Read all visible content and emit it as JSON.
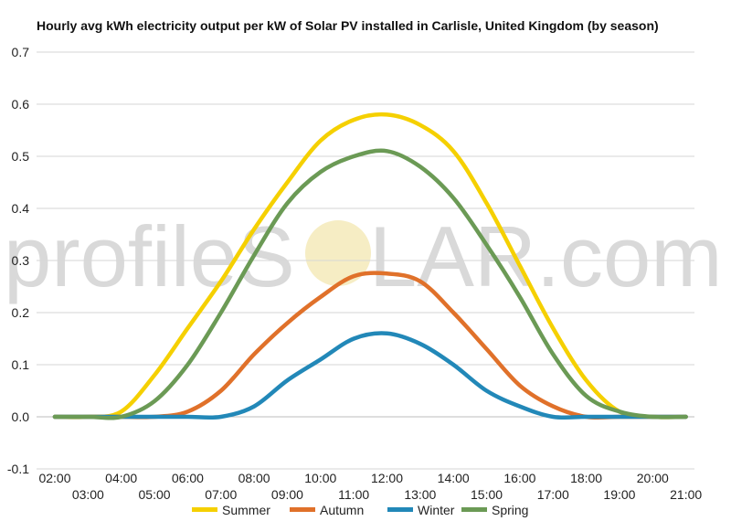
{
  "watermark": {
    "left": "profileS",
    "right": "LAR.com"
  },
  "chart_data": {
    "type": "line",
    "title": "Hourly avg kWh electricity output per kW of Solar PV installed in Carlisle, United Kingdom (by season)",
    "xlabel": "",
    "ylabel": "",
    "ylim": [
      -0.1,
      0.7
    ],
    "yticks": [
      -0.1,
      0.0,
      0.1,
      0.2,
      0.3,
      0.4,
      0.5,
      0.6,
      0.7
    ],
    "ytick_labels": [
      "-0.1",
      "0.0",
      "0.1",
      "0.2",
      "0.3",
      "0.4",
      "0.5",
      "0.6",
      "0.7"
    ],
    "x": [
      "02:00",
      "03:00",
      "04:00",
      "05:00",
      "06:00",
      "07:00",
      "08:00",
      "09:00",
      "10:00",
      "11:00",
      "12:00",
      "13:00",
      "14:00",
      "15:00",
      "16:00",
      "17:00",
      "18:00",
      "19:00",
      "20:00",
      "21:00"
    ],
    "grid": true,
    "legend_position": "bottom",
    "series": [
      {
        "name": "Summer",
        "color": "#f5d000",
        "values": [
          0.0,
          0.0,
          0.01,
          0.08,
          0.17,
          0.26,
          0.36,
          0.45,
          0.53,
          0.57,
          0.58,
          0.56,
          0.51,
          0.41,
          0.29,
          0.17,
          0.07,
          0.01,
          0.0,
          0.0
        ]
      },
      {
        "name": "Autumn",
        "color": "#e0712a",
        "values": [
          0.0,
          0.0,
          0.0,
          0.0,
          0.01,
          0.05,
          0.12,
          0.18,
          0.23,
          0.27,
          0.275,
          0.26,
          0.2,
          0.13,
          0.06,
          0.02,
          0.0,
          0.0,
          0.0,
          0.0
        ]
      },
      {
        "name": "Winter",
        "color": "#2288b8",
        "values": [
          0.0,
          0.0,
          0.0,
          0.0,
          0.0,
          0.0,
          0.02,
          0.07,
          0.11,
          0.15,
          0.16,
          0.14,
          0.1,
          0.05,
          0.02,
          0.0,
          0.0,
          0.0,
          0.0,
          0.0
        ]
      },
      {
        "name": "Spring",
        "color": "#6b9a55",
        "values": [
          0.0,
          0.0,
          0.0,
          0.03,
          0.1,
          0.2,
          0.31,
          0.41,
          0.47,
          0.5,
          0.51,
          0.48,
          0.42,
          0.33,
          0.23,
          0.12,
          0.04,
          0.01,
          0.0,
          0.0
        ]
      }
    ]
  }
}
